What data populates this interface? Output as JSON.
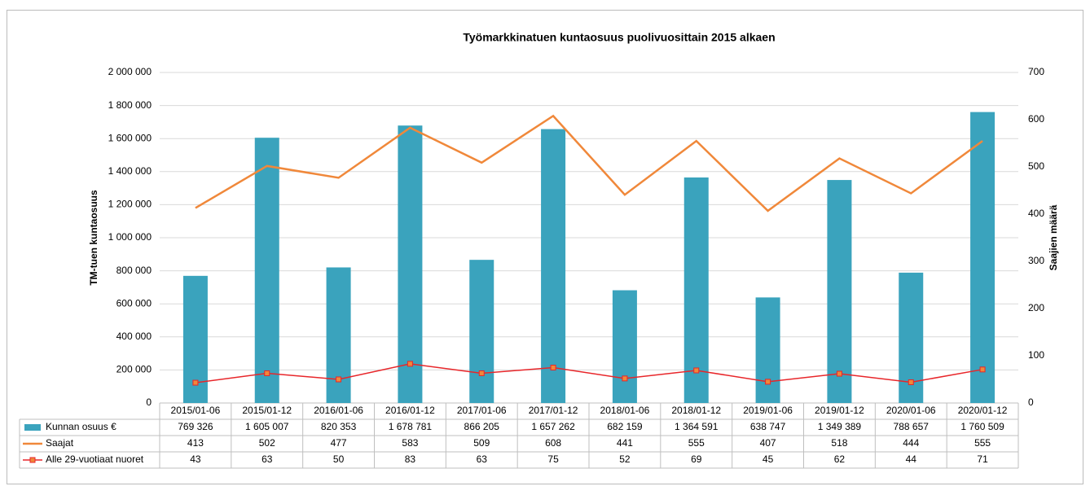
{
  "chart_data": {
    "type": "bar",
    "title": "Työmarkkinatuen kuntaosuus puolivuosittain 2015 alkaen",
    "ylabel": "TM-tuen kuntaosuus",
    "y2label": "Saajien määrä",
    "categories": [
      "2015/01-06",
      "2015/01-12",
      "2016/01-06",
      "2016/01-12",
      "2017/01-06",
      "2017/01-12",
      "2018/01-06",
      "2018/01-12",
      "2019/01-06",
      "2019/01-12",
      "2020/01-06",
      "2020/01-12"
    ],
    "series": [
      {
        "name": "Kunnan osuus  €",
        "type": "bar",
        "color": "#3aa3bd",
        "values": [
          769326,
          1605007,
          820353,
          1678781,
          866205,
          1657262,
          682159,
          1364591,
          638747,
          1349389,
          788657,
          1760509
        ],
        "value_labels": [
          "769 326",
          "1 605 007",
          "820 353",
          "1 678 781",
          "866 205",
          "1 657 262",
          "682 159",
          "1 364 591",
          "638 747",
          "1 349 389",
          "788 657",
          "1 760 509"
        ]
      },
      {
        "name": "Saajat",
        "type": "line",
        "axis": "y2",
        "color": "#f0883a",
        "values": [
          413,
          502,
          477,
          583,
          509,
          608,
          441,
          555,
          407,
          518,
          444,
          555
        ]
      },
      {
        "name": "Alle 29-vuotiaat nuoret",
        "type": "line",
        "axis": "y2",
        "color": "#e8262a",
        "marker": "square",
        "values": [
          43,
          63,
          50,
          83,
          63,
          75,
          52,
          69,
          45,
          62,
          44,
          71
        ]
      }
    ],
    "ylim": [
      0,
      2000000
    ],
    "yticks": [
      0,
      {
        "value": 200000,
        "label": "200 000"
      },
      {
        "value": 400000,
        "label": "400 000"
      },
      {
        "value": 600000,
        "label": "600 000"
      },
      {
        "value": 800000,
        "label": "800 000"
      },
      {
        "value": 1000000,
        "label": "1 000 000"
      },
      {
        "value": 1200000,
        "label": "1 200 000"
      },
      {
        "value": 1400000,
        "label": "1 400 000"
      },
      {
        "value": 1600000,
        "label": "1 600 000"
      },
      {
        "value": 1800000,
        "label": "1 800 000"
      },
      {
        "value": 2000000,
        "label": "2 000 000"
      }
    ],
    "y2lim": [
      0,
      700
    ],
    "y2ticks": [
      0,
      100,
      200,
      300,
      400,
      500,
      600,
      700
    ],
    "grid": true
  }
}
